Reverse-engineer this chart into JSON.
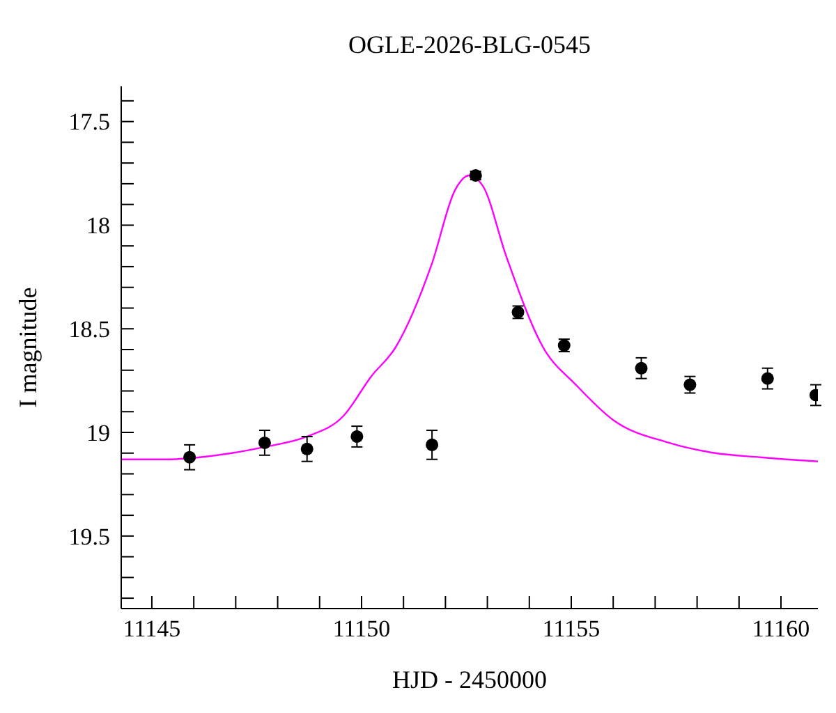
{
  "chart_data": {
    "type": "scatter",
    "title": "OGLE-2026-BLG-0545",
    "xlabel": "HJD - 2450000",
    "ylabel": "I magnitude",
    "xlim": [
      11144.27,
      11160.88
    ],
    "xticks": [
      11145,
      {
        "value": 11146,
        "label": null
      },
      {
        "value": 11147,
        "label": null
      },
      {
        "value": 11148,
        "label": null
      },
      {
        "value": 11149,
        "label": null
      },
      11150,
      {
        "value": 11151,
        "label": null
      },
      {
        "value": 11152,
        "label": null
      },
      {
        "value": 11153,
        "label": null
      },
      {
        "value": 11154,
        "label": null
      },
      11155,
      {
        "value": 11156,
        "label": null
      },
      {
        "value": 11157,
        "label": null
      },
      {
        "value": 11158,
        "label": null
      },
      {
        "value": 11159,
        "label": null
      },
      11160
    ],
    "ylim": [
      19.85,
      17.33
    ],
    "yticks": [
      {
        "value": 17.4,
        "label": null
      },
      17.5,
      {
        "value": 17.6,
        "label": null
      },
      {
        "value": 17.7,
        "label": null
      },
      {
        "value": 17.8,
        "label": null
      },
      {
        "value": 17.9,
        "label": null
      },
      18,
      {
        "value": 18.1,
        "label": null
      },
      {
        "value": 18.2,
        "label": null
      },
      {
        "value": 18.3,
        "label": null
      },
      {
        "value": 18.4,
        "label": null
      },
      18.5,
      {
        "value": 18.6,
        "label": null
      },
      {
        "value": 18.7,
        "label": null
      },
      {
        "value": 18.8,
        "label": null
      },
      {
        "value": 18.9,
        "label": null
      },
      19,
      {
        "value": 19.1,
        "label": null
      },
      {
        "value": 19.2,
        "label": null
      },
      {
        "value": 19.3,
        "label": null
      },
      {
        "value": 19.4,
        "label": null
      },
      19.5,
      {
        "value": 19.6,
        "label": null
      },
      {
        "value": 19.7,
        "label": null
      },
      {
        "value": 19.8,
        "label": null
      }
    ],
    "series": [
      {
        "type": "line",
        "color": "#ff00ff",
        "marker": "none",
        "x": [
          11144.27,
          11145.3,
          11146.9,
          11147.69,
          11148.7,
          11149.57,
          11150.23,
          11150.81,
          11151.67,
          11152.23,
          11152.56,
          11152.89,
          11153.45,
          11154.33,
          11155.11,
          11156.0,
          11157.33,
          11158.44,
          11159.5,
          11160.88
        ],
        "values": [
          19.13,
          19.13,
          19.1,
          19.07,
          19.02,
          18.92,
          18.73,
          18.59,
          18.19,
          17.83,
          17.76,
          17.81,
          18.15,
          18.59,
          18.77,
          18.94,
          19.05,
          19.1,
          19.12,
          19.14
        ]
      },
      {
        "type": "scatter",
        "color": "#000000",
        "marker": "circle",
        "x": [
          11145.9,
          11147.69,
          11148.7,
          11149.89,
          11151.68,
          11152.72,
          11153.73,
          11154.83,
          11156.67,
          11157.83,
          11159.68,
          11160.83
        ],
        "values": [
          19.12,
          19.05,
          19.08,
          19.02,
          19.06,
          17.76,
          18.42,
          18.58,
          18.69,
          18.77,
          18.74,
          18.82
        ],
        "errors": [
          0.06,
          0.06,
          0.06,
          0.05,
          0.07,
          0.02,
          0.03,
          0.03,
          0.05,
          0.04,
          0.05,
          0.05
        ]
      }
    ]
  }
}
